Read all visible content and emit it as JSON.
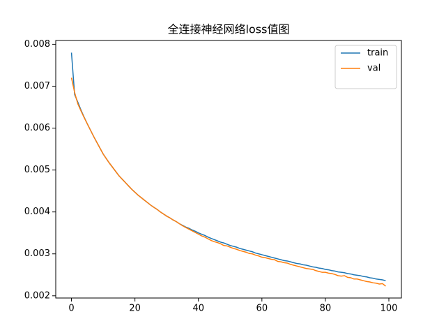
{
  "chart_data": {
    "type": "line",
    "title": "全连接神经网络loss值图",
    "x": [
      0,
      1,
      2,
      3,
      4,
      5,
      6,
      7,
      8,
      9,
      10,
      11,
      12,
      13,
      14,
      15,
      16,
      17,
      18,
      19,
      20,
      21,
      22,
      23,
      24,
      25,
      26,
      27,
      28,
      29,
      30,
      31,
      32,
      33,
      34,
      35,
      36,
      37,
      38,
      39,
      40,
      41,
      42,
      43,
      44,
      45,
      46,
      47,
      48,
      49,
      50,
      51,
      52,
      53,
      54,
      55,
      56,
      57,
      58,
      59,
      60,
      61,
      62,
      63,
      64,
      65,
      66,
      67,
      68,
      69,
      70,
      71,
      72,
      73,
      74,
      75,
      76,
      77,
      78,
      79,
      80,
      81,
      82,
      83,
      84,
      85,
      86,
      87,
      88,
      89,
      90,
      91,
      92,
      93,
      94,
      95,
      96,
      97,
      98,
      99
    ],
    "series": [
      {
        "name": "train",
        "color": "#1f77b4",
        "values": [
          0.0078,
          0.0068,
          0.00662,
          0.00643,
          0.00626,
          0.0061,
          0.00595,
          0.0058,
          0.00566,
          0.00552,
          0.00538,
          0.00527,
          0.00516,
          0.00506,
          0.00496,
          0.00486,
          0.00478,
          0.0047,
          0.00462,
          0.00454,
          0.00447,
          0.0044,
          0.00434,
          0.00428,
          0.00422,
          0.00416,
          0.00411,
          0.00406,
          0.004,
          0.00395,
          0.0039,
          0.00386,
          0.00381,
          0.00377,
          0.00372,
          0.00368,
          0.00364,
          0.00361,
          0.00357,
          0.00354,
          0.0035,
          0.00347,
          0.00344,
          0.0034,
          0.00337,
          0.00334,
          0.00331,
          0.00328,
          0.00326,
          0.00323,
          0.0032,
          0.00318,
          0.00316,
          0.00313,
          0.00311,
          0.00309,
          0.00307,
          0.00305,
          0.00302,
          0.003,
          0.00298,
          0.00296,
          0.00294,
          0.00292,
          0.0029,
          0.00288,
          0.00286,
          0.00284,
          0.00283,
          0.00281,
          0.00279,
          0.00277,
          0.00276,
          0.00274,
          0.00273,
          0.00271,
          0.00269,
          0.00268,
          0.00266,
          0.00265,
          0.00263,
          0.00262,
          0.0026,
          0.00259,
          0.00257,
          0.00256,
          0.00255,
          0.00253,
          0.00252,
          0.0025,
          0.00249,
          0.00248,
          0.00246,
          0.00245,
          0.00243,
          0.00242,
          0.0024,
          0.00239,
          0.00238,
          0.00236
        ]
      },
      {
        "name": "val",
        "color": "#ff7f0e",
        "values": [
          0.0072,
          0.00685,
          0.00658,
          0.00641,
          0.00625,
          0.0061,
          0.00595,
          0.0058,
          0.00566,
          0.00552,
          0.00538,
          0.00527,
          0.00516,
          0.00506,
          0.00496,
          0.00486,
          0.00478,
          0.0047,
          0.00462,
          0.00454,
          0.00447,
          0.0044,
          0.00434,
          0.00428,
          0.00422,
          0.00416,
          0.00411,
          0.00406,
          0.004,
          0.00395,
          0.0039,
          0.00386,
          0.00381,
          0.00377,
          0.00372,
          0.00367,
          0.00363,
          0.00359,
          0.00355,
          0.00351,
          0.00347,
          0.00343,
          0.0034,
          0.00336,
          0.00332,
          0.00329,
          0.00327,
          0.00324,
          0.0032,
          0.00319,
          0.00316,
          0.00313,
          0.00311,
          0.00308,
          0.00306,
          0.00304,
          0.00301,
          0.003,
          0.00297,
          0.00295,
          0.00292,
          0.00291,
          0.00289,
          0.00287,
          0.00286,
          0.00282,
          0.00281,
          0.00279,
          0.00278,
          0.00275,
          0.00273,
          0.00271,
          0.00269,
          0.00267,
          0.00265,
          0.00264,
          0.00263,
          0.0026,
          0.00258,
          0.00256,
          0.00256,
          0.00254,
          0.00253,
          0.00251,
          0.00248,
          0.00247,
          0.00248,
          0.00244,
          0.00243,
          0.0024,
          0.0024,
          0.00238,
          0.00236,
          0.00234,
          0.00233,
          0.00231,
          0.0023,
          0.00228,
          0.00229,
          0.00223
        ]
      }
    ],
    "xlim": [
      -4.95,
      103.95
    ],
    "xticks": [
      0,
      20,
      40,
      60,
      80,
      100
    ],
    "ylim": [
      0.001947,
      0.00809
    ],
    "yticks": [
      0.002,
      0.003,
      0.004,
      0.005,
      0.006,
      0.007,
      0.008
    ],
    "legend": "upper right"
  }
}
